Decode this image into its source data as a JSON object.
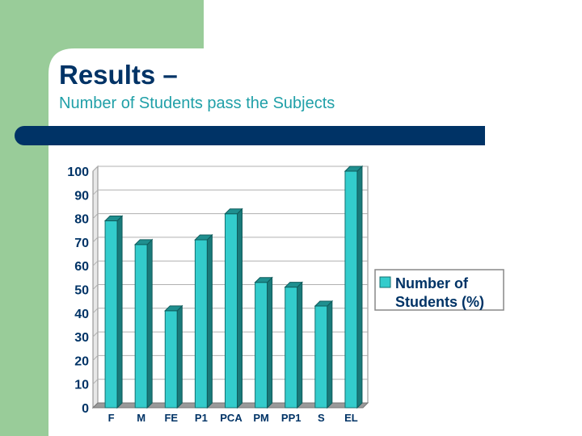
{
  "slide": {
    "title": "Results –",
    "subtitle": "Number of Students pass the Subjects"
  },
  "colors": {
    "side_band": "#99cc99",
    "title_bar": "#003366",
    "title_text": "#003366",
    "subtitle_text": "#20a0a8",
    "bar_face": "#33cccc",
    "bar_side": "#1a7a7a",
    "bar_top": "#1f8f8f",
    "axis_text": "#003366",
    "grid": "#b0b0b0"
  },
  "chart_data": {
    "type": "bar",
    "categories": [
      "F",
      "M",
      "FE",
      "P1",
      "PCA",
      "PM",
      "PP1",
      "S",
      "EL"
    ],
    "series": [
      {
        "name": "Number of Students (%)",
        "values": [
          79,
          69,
          41,
          71,
          82,
          53,
          51,
          43,
          100
        ]
      }
    ],
    "yticks": [
      "0",
      "10",
      "20",
      "30",
      "40",
      "50",
      "60",
      "70",
      "80",
      "90",
      "100"
    ],
    "ylim": [
      0,
      100
    ],
    "grid": true,
    "legend": {
      "position": "right",
      "lines": [
        "Number of",
        "Students (%)"
      ]
    }
  }
}
